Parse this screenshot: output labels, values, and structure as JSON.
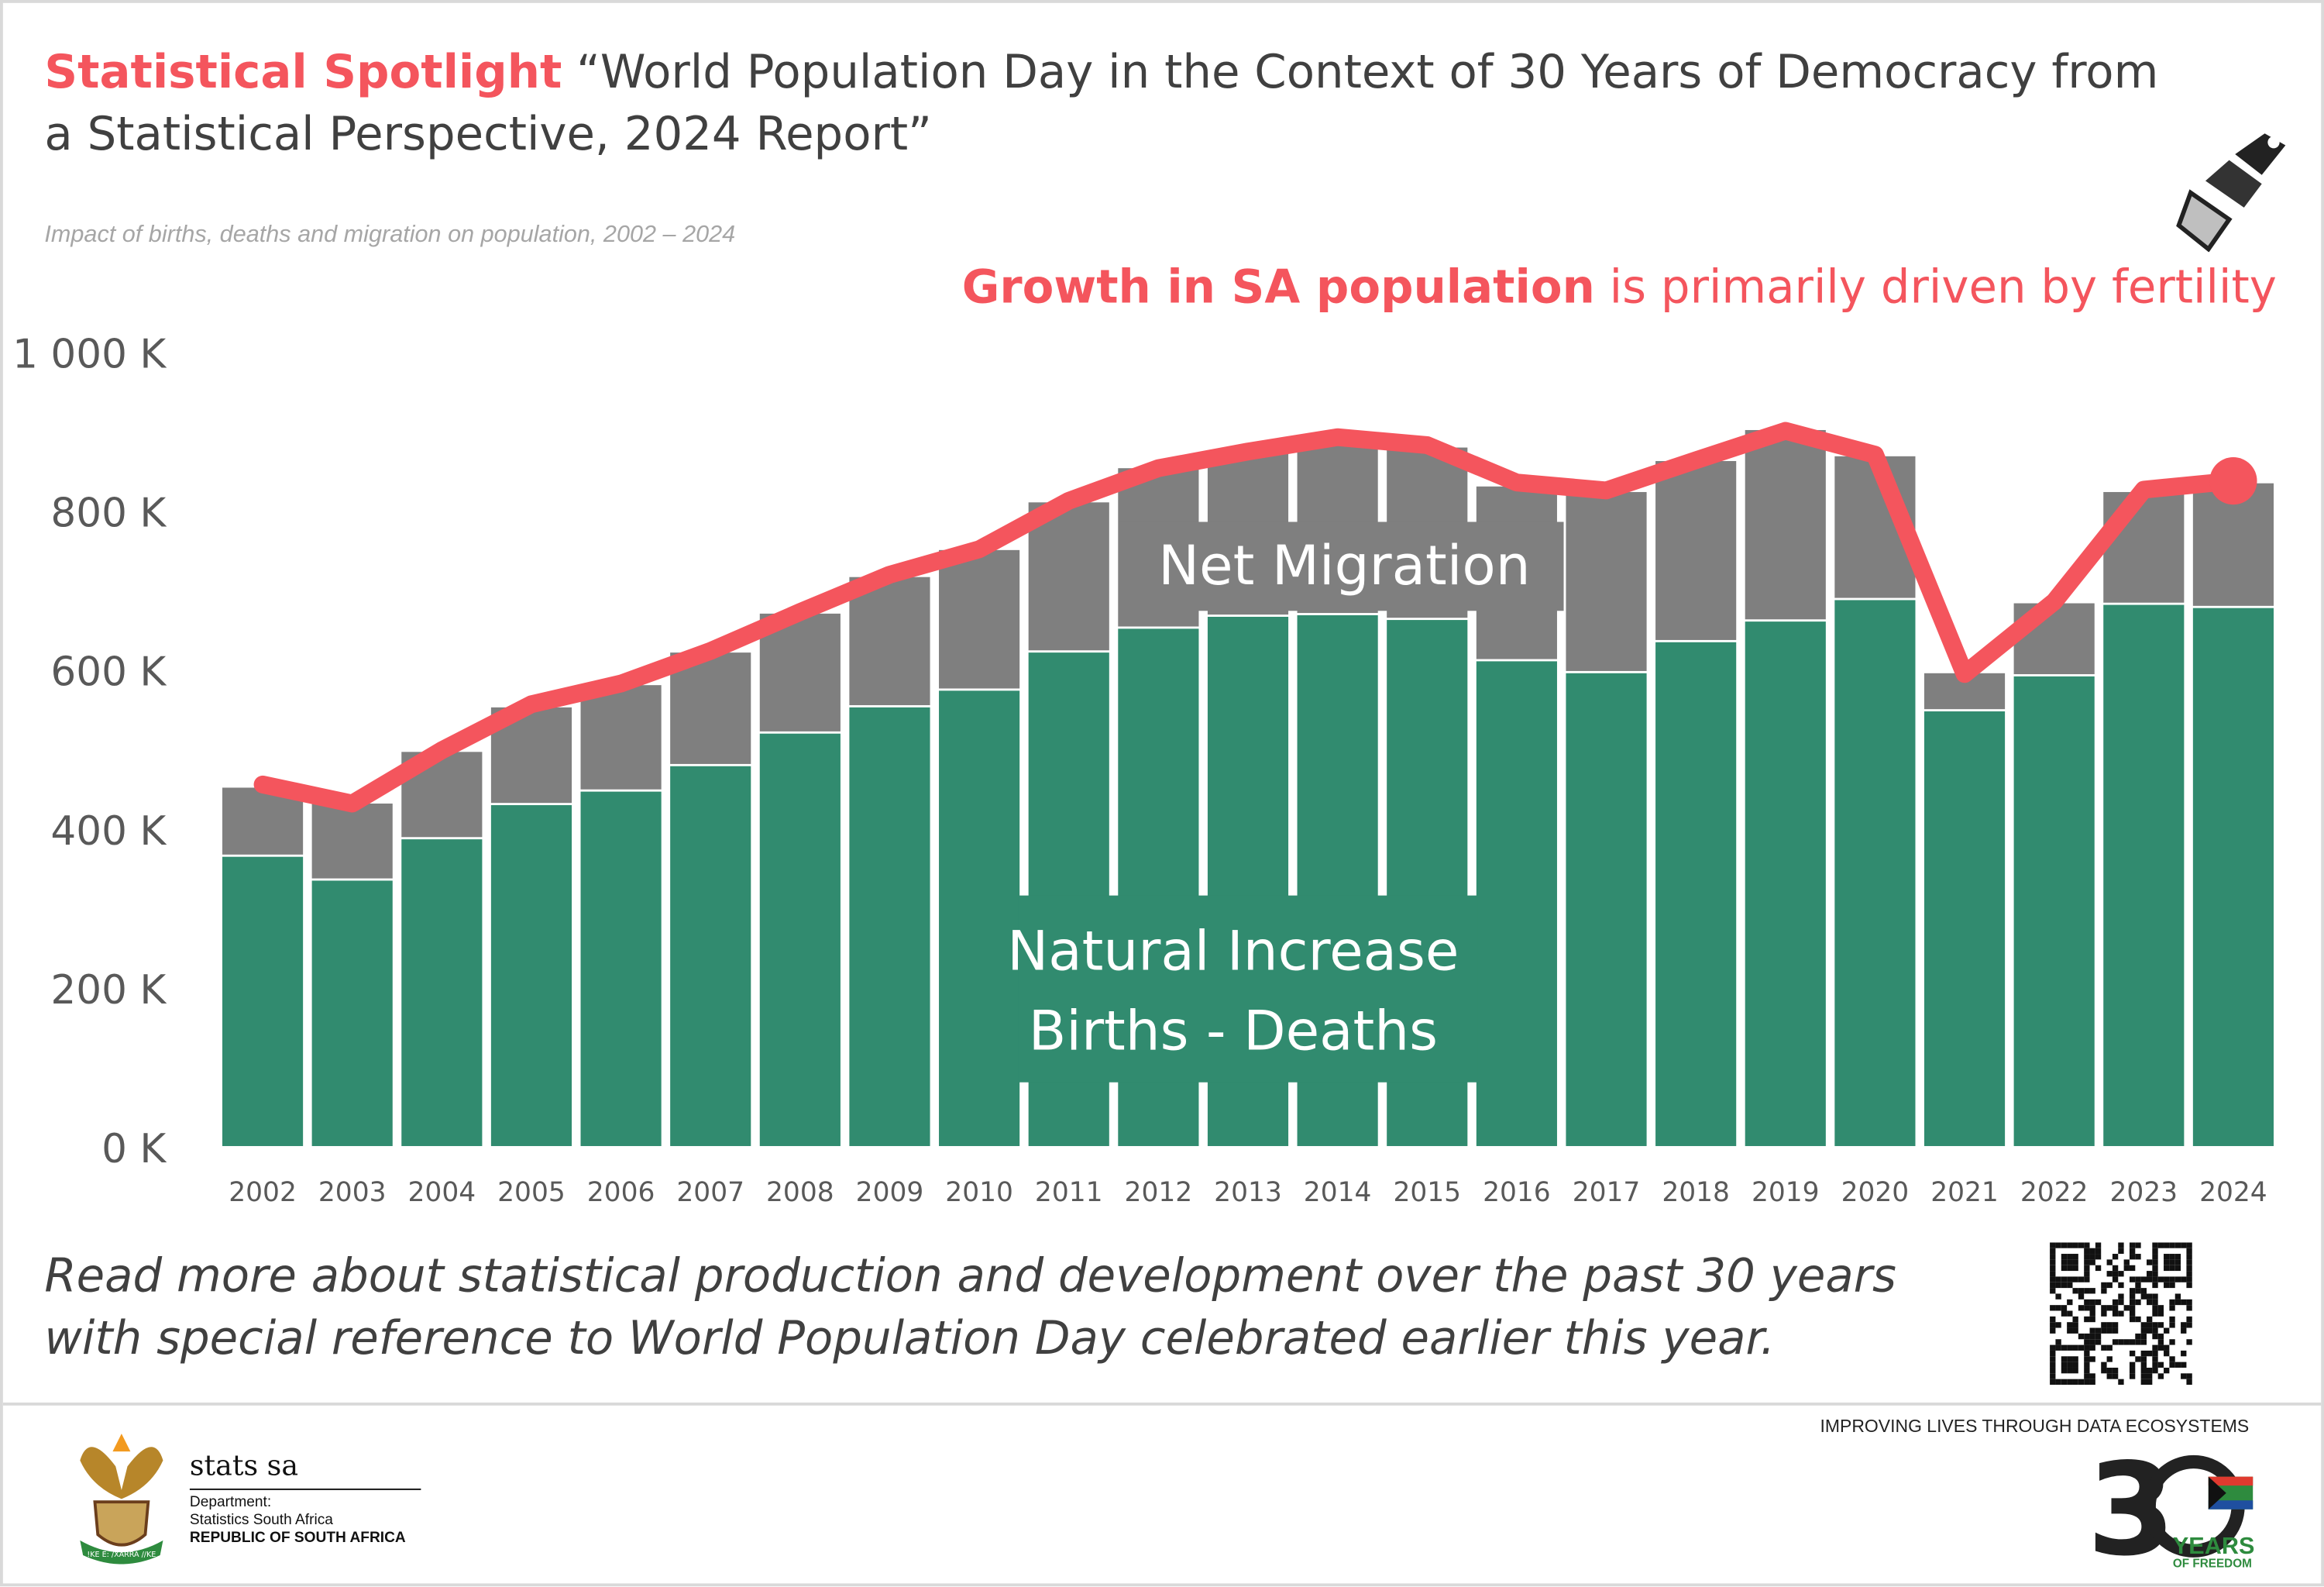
{
  "header": {
    "spotlight_label": "Statistical Spotlight",
    "title": "“World Population Day in the Context of 30 Years of Democracy from a Statistical Perspective, 2024 Report”",
    "headline_bold": "Growth in SA population",
    "headline_rest": " is primarily driven by fertility"
  },
  "footer": {
    "read_more": "Read more about statistical production and development over the past 30 years with special reference to World Population Day celebrated earlier this year.",
    "org_name": "stats sa",
    "dept_line1": "Department:",
    "dept_line2": "Statistics South Africa",
    "dept_line3": "REPUBLIC OF SOUTH AFRICA",
    "tagline": "IMPROVING LIVES THROUGH DATA ECOSYSTEMS",
    "logo_30_years_text": "30 YEARS OF FREEDOM South Africa 1994 - 2024",
    "coat_of_arms_motto": "!KE E: /XARRA //KE"
  },
  "icons": [
    "spotlight-icon",
    "qr-code-icon",
    "coat-of-arms-icon",
    "30-years-logo-icon"
  ],
  "chart_data": {
    "type": "bar",
    "stacked": true,
    "title": "Impact of births, deaths and migration on population, 2002 – 2024",
    "xlabel": "",
    "ylabel": "",
    "ylim": [
      0,
      1000
    ],
    "yticks": [
      "0 K",
      "200 K",
      "400 K",
      "600 K",
      "800 K",
      "1 000 K"
    ],
    "ytick_values": [
      0,
      200,
      400,
      600,
      800,
      1000
    ],
    "grid": false,
    "categories": [
      "2002",
      "2003",
      "2004",
      "2005",
      "2006",
      "2007",
      "2008",
      "2009",
      "2010",
      "2011",
      "2012",
      "2013",
      "2014",
      "2015",
      "2016",
      "2017",
      "2018",
      "2019",
      "2020",
      "2021",
      "2022",
      "2023",
      "2024"
    ],
    "series": [
      {
        "name": "Natural Increase Births - Deaths",
        "label_line1": "Natural Increase",
        "label_line2": "Births - Deaths",
        "color": "#318b6f",
        "values": [
          364,
          334,
          386,
          429,
          446,
          478,
          519,
          552,
          573,
          621,
          651,
          666,
          668,
          662,
          610,
          595,
          634,
          660,
          687,
          547,
          591,
          681,
          677
        ]
      },
      {
        "name": "Net Migration",
        "label_line1": "Net Migration",
        "color": "#7f7f7f",
        "values": [
          87,
          97,
          110,
          123,
          134,
          143,
          151,
          164,
          177,
          189,
          202,
          207,
          222,
          217,
          220,
          228,
          228,
          241,
          181,
          48,
          92,
          142,
          157
        ]
      },
      {
        "name": "Population growth",
        "type": "line",
        "color": "#f4555d",
        "values": [
          455,
          431,
          498,
          556,
          582,
          623,
          672,
          719,
          751,
          812,
          853,
          874,
          892,
          882,
          835,
          825,
          863,
          900,
          870,
          594,
          685,
          826,
          837
        ]
      }
    ]
  }
}
